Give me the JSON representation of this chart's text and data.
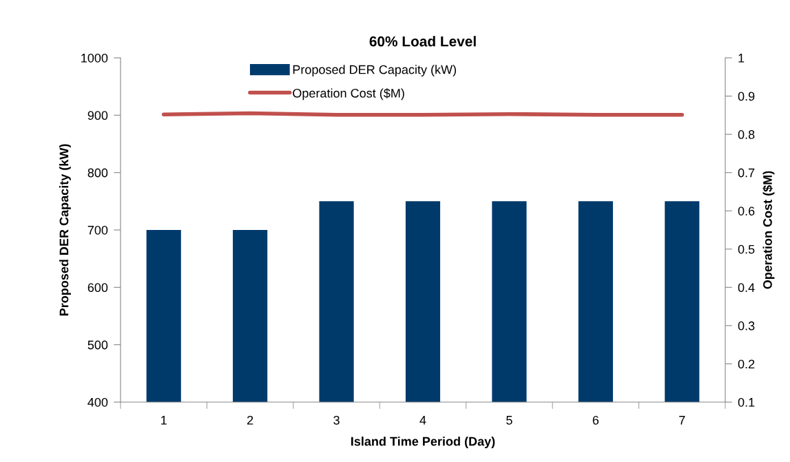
{
  "chart_data": {
    "type": "bar",
    "title": "60% Load Level",
    "xlabel": "Island Time Period (Day)",
    "ylabel": "Proposed DER Capacity (kW)",
    "y2label": "Operation Cost ($M)",
    "categories": [
      "1",
      "2",
      "3",
      "4",
      "5",
      "6",
      "7"
    ],
    "series": [
      {
        "name": "Proposed DER Capacity (kW)",
        "color": "#003a6b",
        "values": [
          700,
          700,
          750,
          750,
          750,
          750,
          750
        ]
      },
      {
        "name": "Operation Cost ($M)",
        "type": "line",
        "axis": "y2",
        "color": "#c0504d",
        "line_style": "solid",
        "marker": "none",
        "values": [
          0.852,
          0.855,
          0.851,
          0.851,
          0.853,
          0.851,
          0.851
        ]
      }
    ],
    "ylim": [
      400,
      1000
    ],
    "yticks": [
      400,
      500,
      600,
      700,
      800,
      900,
      1000
    ],
    "y2lim": [
      0.1,
      1
    ],
    "y2ticks": [
      0.1,
      0.2,
      0.3,
      0.4,
      0.5,
      0.6,
      0.7,
      0.8,
      0.9,
      1
    ],
    "grid": false,
    "legend": "top"
  }
}
